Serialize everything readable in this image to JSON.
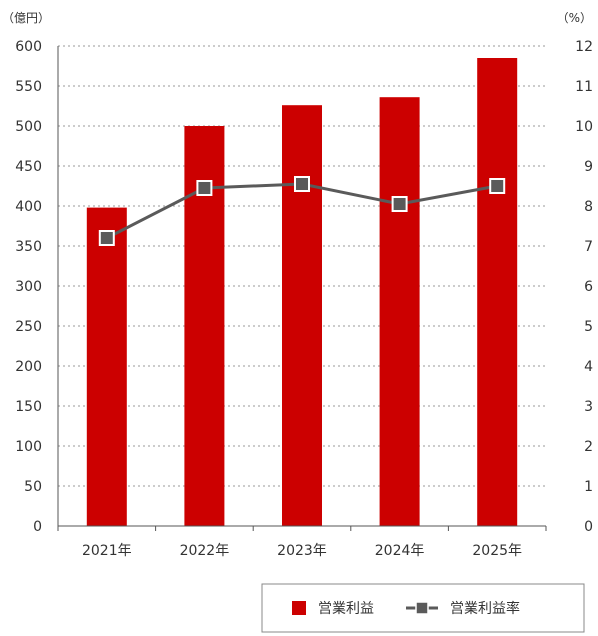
{
  "chart_data": {
    "type": "bar",
    "categories": [
      "2021年",
      "2022年",
      "2023年",
      "2024年",
      "2025年"
    ],
    "series": [
      {
        "name": "営業利益",
        "type": "bar",
        "axis": "left",
        "values": [
          398,
          500,
          526,
          536,
          585
        ],
        "color": "#cc0000"
      },
      {
        "name": "営業利益率",
        "type": "line",
        "axis": "right",
        "values": [
          7.2,
          8.45,
          8.55,
          8.05,
          8.5
        ],
        "color": "#5a5a5a",
        "marker": "square"
      }
    ],
    "y_left": {
      "unit": "（億円）",
      "ylim": [
        0,
        600
      ],
      "ticks": [
        "0",
        "50",
        "100",
        "150",
        "200",
        "250",
        "300",
        "350",
        "400",
        "450",
        "500",
        "550",
        "600"
      ]
    },
    "y_right": {
      "unit": "（%）",
      "ylim": [
        0,
        12
      ],
      "ticks": [
        "0",
        "1",
        "2",
        "3",
        "4",
        "5",
        "6",
        "7",
        "8",
        "9",
        "10",
        "11",
        "12"
      ]
    },
    "grid": true,
    "grid_style": "dotted",
    "legend_position": "bottom-right"
  }
}
